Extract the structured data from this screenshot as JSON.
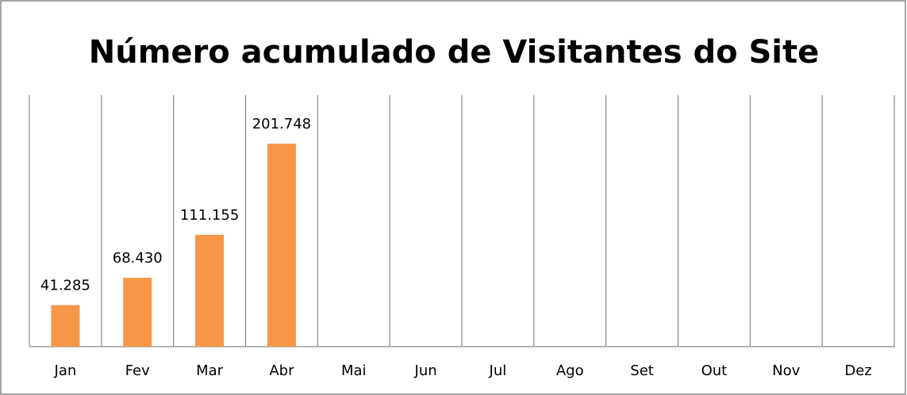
{
  "chart_data": {
    "type": "bar",
    "title": "Número acumulado de Visitantes do Site",
    "categories": [
      "Jan",
      "Fev",
      "Mar",
      "Abr",
      "Mai",
      "Jun",
      "Jul",
      "Ago",
      "Set",
      "Out",
      "Nov",
      "Dez"
    ],
    "values": [
      41285,
      68430,
      111155,
      201748,
      null,
      null,
      null,
      null,
      null,
      null,
      null,
      null
    ],
    "value_labels": [
      "41.285",
      "68.430",
      "111.155",
      "201.748",
      null,
      null,
      null,
      null,
      null,
      null,
      null,
      null
    ],
    "color": "#f79646",
    "ylim": [
      0,
      250000
    ],
    "grid": true
  }
}
